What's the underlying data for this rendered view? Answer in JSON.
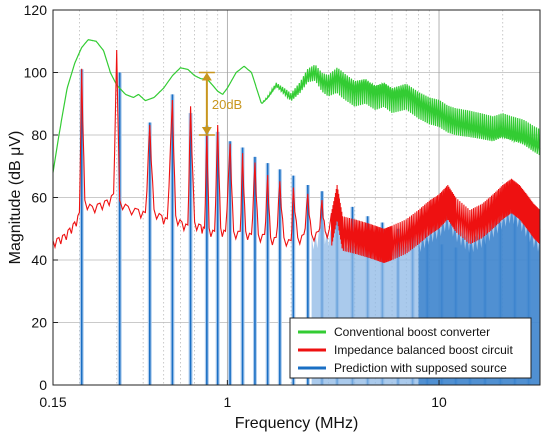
{
  "chart_data": {
    "type": "line",
    "xlabel": "Frequency (MHz)",
    "ylabel": "Magnitude (dB μV)",
    "xscale": "log",
    "xlim": [
      0.15,
      30
    ],
    "ylim": [
      0,
      120
    ],
    "x_ticks": [
      0.15,
      1,
      10
    ],
    "x_tick_labels": [
      "0.15",
      "1",
      "10"
    ],
    "y_ticks": [
      0,
      20,
      40,
      60,
      80,
      100,
      120
    ],
    "y_tick_labels": [
      "0",
      "20",
      "40",
      "60",
      "80",
      "100",
      "120"
    ],
    "grid": true,
    "legend_position": "bottom-right",
    "annotation": {
      "text": "20dB",
      "x": 0.8,
      "y_top": 100,
      "y_bottom": 80,
      "color": "#c8961e"
    },
    "series": [
      {
        "name": "Conventional boost converter",
        "color": "#33cc33",
        "points": [
          [
            0.15,
            68
          ],
          [
            0.16,
            80
          ],
          [
            0.175,
            95
          ],
          [
            0.19,
            103
          ],
          [
            0.205,
            108
          ],
          [
            0.22,
            110.5
          ],
          [
            0.24,
            110
          ],
          [
            0.26,
            107
          ],
          [
            0.28,
            100
          ],
          [
            0.3,
            96
          ],
          [
            0.33,
            93
          ],
          [
            0.36,
            92
          ],
          [
            0.38,
            93
          ],
          [
            0.41,
            91
          ],
          [
            0.45,
            92
          ],
          [
            0.5,
            95
          ],
          [
            0.55,
            99
          ],
          [
            0.6,
            101.5
          ],
          [
            0.65,
            101
          ],
          [
            0.7,
            99
          ],
          [
            0.75,
            98
          ],
          [
            0.8,
            98
          ],
          [
            0.85,
            96
          ],
          [
            0.9,
            94
          ],
          [
            0.95,
            93
          ],
          [
            1.0,
            95
          ],
          [
            1.1,
            100
          ],
          [
            1.2,
            102
          ],
          [
            1.3,
            100
          ],
          [
            1.45,
            90
          ],
          [
            1.55,
            92
          ],
          [
            1.7,
            96
          ],
          [
            1.85,
            94
          ],
          [
            2.0,
            92
          ],
          [
            2.2,
            95
          ],
          [
            2.4,
            99
          ],
          [
            2.6,
            100
          ],
          [
            2.8,
            97
          ],
          [
            3.0,
            96
          ],
          [
            3.3,
            98
          ],
          [
            3.6,
            96
          ],
          [
            4.0,
            94
          ],
          [
            4.5,
            95
          ],
          [
            5.0,
            93
          ],
          [
            5.5,
            94
          ],
          [
            6.0,
            92
          ],
          [
            7.0,
            93
          ],
          [
            8.0,
            90
          ],
          [
            9.0,
            88
          ],
          [
            10.0,
            87
          ],
          [
            11.0,
            85
          ],
          [
            12.0,
            84
          ],
          [
            14.0,
            83
          ],
          [
            16.0,
            82
          ],
          [
            18.0,
            81
          ],
          [
            20.0,
            82
          ],
          [
            22.0,
            81
          ],
          [
            25.0,
            80
          ],
          [
            28.0,
            78
          ],
          [
            30.0,
            77
          ]
        ]
      },
      {
        "name": "Impedance balanced boost circuit",
        "color": "#ee1111",
        "points": [
          [
            0.15,
            45
          ],
          [
            0.16,
            46
          ],
          [
            0.17,
            47
          ],
          [
            0.18,
            49
          ],
          [
            0.19,
            51
          ],
          [
            0.2,
            54
          ],
          [
            0.205,
            100
          ],
          [
            0.212,
            58
          ],
          [
            0.23,
            56
          ],
          [
            0.25,
            57
          ],
          [
            0.27,
            58
          ],
          [
            0.29,
            60
          ],
          [
            0.3,
            106
          ],
          [
            0.31,
            58
          ],
          [
            0.34,
            56
          ],
          [
            0.38,
            55
          ],
          [
            0.41,
            54
          ],
          [
            0.43,
            82
          ],
          [
            0.45,
            55
          ],
          [
            0.49,
            53
          ],
          [
            0.52,
            52
          ],
          [
            0.55,
            90
          ],
          [
            0.57,
            53
          ],
          [
            0.61,
            51
          ],
          [
            0.65,
            50
          ],
          [
            0.67,
            88
          ],
          [
            0.7,
            51
          ],
          [
            0.75,
            50
          ],
          [
            0.78,
            49
          ],
          [
            0.8,
            80
          ],
          [
            0.82,
            49
          ],
          [
            0.87,
            48
          ],
          [
            0.9,
            82
          ],
          [
            0.93,
            49
          ],
          [
            0.98,
            48
          ],
          [
            1.03,
            76
          ],
          [
            1.07,
            48
          ],
          [
            1.15,
            48
          ],
          [
            1.18,
            73
          ],
          [
            1.22,
            48
          ],
          [
            1.3,
            47
          ],
          [
            1.35,
            70
          ],
          [
            1.4,
            47
          ],
          [
            1.5,
            47
          ],
          [
            1.55,
            66
          ],
          [
            1.6,
            46
          ],
          [
            1.7,
            46
          ],
          [
            1.77,
            64
          ],
          [
            1.85,
            46
          ],
          [
            2.0,
            45
          ],
          [
            2.05,
            62
          ],
          [
            2.15,
            46
          ],
          [
            2.3,
            47
          ],
          [
            2.4,
            60
          ],
          [
            2.5,
            47
          ],
          [
            2.7,
            48
          ],
          [
            2.8,
            58
          ],
          [
            2.9,
            48
          ],
          [
            3.1,
            49
          ],
          [
            3.3,
            58
          ],
          [
            3.5,
            48
          ],
          [
            4.0,
            47
          ],
          [
            4.5,
            46
          ],
          [
            5.0,
            45
          ],
          [
            5.5,
            44
          ],
          [
            6.0,
            45
          ],
          [
            7.0,
            47
          ],
          [
            8.0,
            50
          ],
          [
            9.0,
            53
          ],
          [
            10.0,
            55
          ],
          [
            11.0,
            58
          ],
          [
            12.0,
            54
          ],
          [
            14.0,
            50
          ],
          [
            16.0,
            52
          ],
          [
            18.0,
            55
          ],
          [
            20.0,
            58
          ],
          [
            22.0,
            60
          ],
          [
            24.0,
            58
          ],
          [
            26.0,
            55
          ],
          [
            28.0,
            52
          ],
          [
            30.0,
            50
          ]
        ]
      },
      {
        "name": "Prediction with supposed source",
        "color": "#1a6fc4",
        "harmonics": [
          [
            0.205,
            101
          ],
          [
            0.31,
            100
          ],
          [
            0.43,
            84
          ],
          [
            0.55,
            93
          ],
          [
            0.67,
            87
          ],
          [
            0.8,
            83
          ],
          [
            0.9,
            81
          ],
          [
            1.03,
            78
          ],
          [
            1.18,
            76
          ],
          [
            1.35,
            73
          ],
          [
            1.55,
            71
          ],
          [
            1.77,
            69
          ],
          [
            2.05,
            67
          ],
          [
            2.4,
            64
          ],
          [
            2.8,
            62
          ],
          [
            3.3,
            60
          ],
          [
            3.9,
            57
          ],
          [
            4.6,
            54
          ],
          [
            5.4,
            52
          ],
          [
            6.4,
            50
          ],
          [
            7.5,
            48
          ],
          [
            8.8,
            46
          ],
          [
            10.3,
            45
          ],
          [
            12.0,
            44
          ],
          [
            14.0,
            45
          ],
          [
            16.5,
            48
          ],
          [
            19.5,
            52
          ],
          [
            22.8,
            60
          ],
          [
            26.5,
            52
          ]
        ]
      }
    ]
  }
}
